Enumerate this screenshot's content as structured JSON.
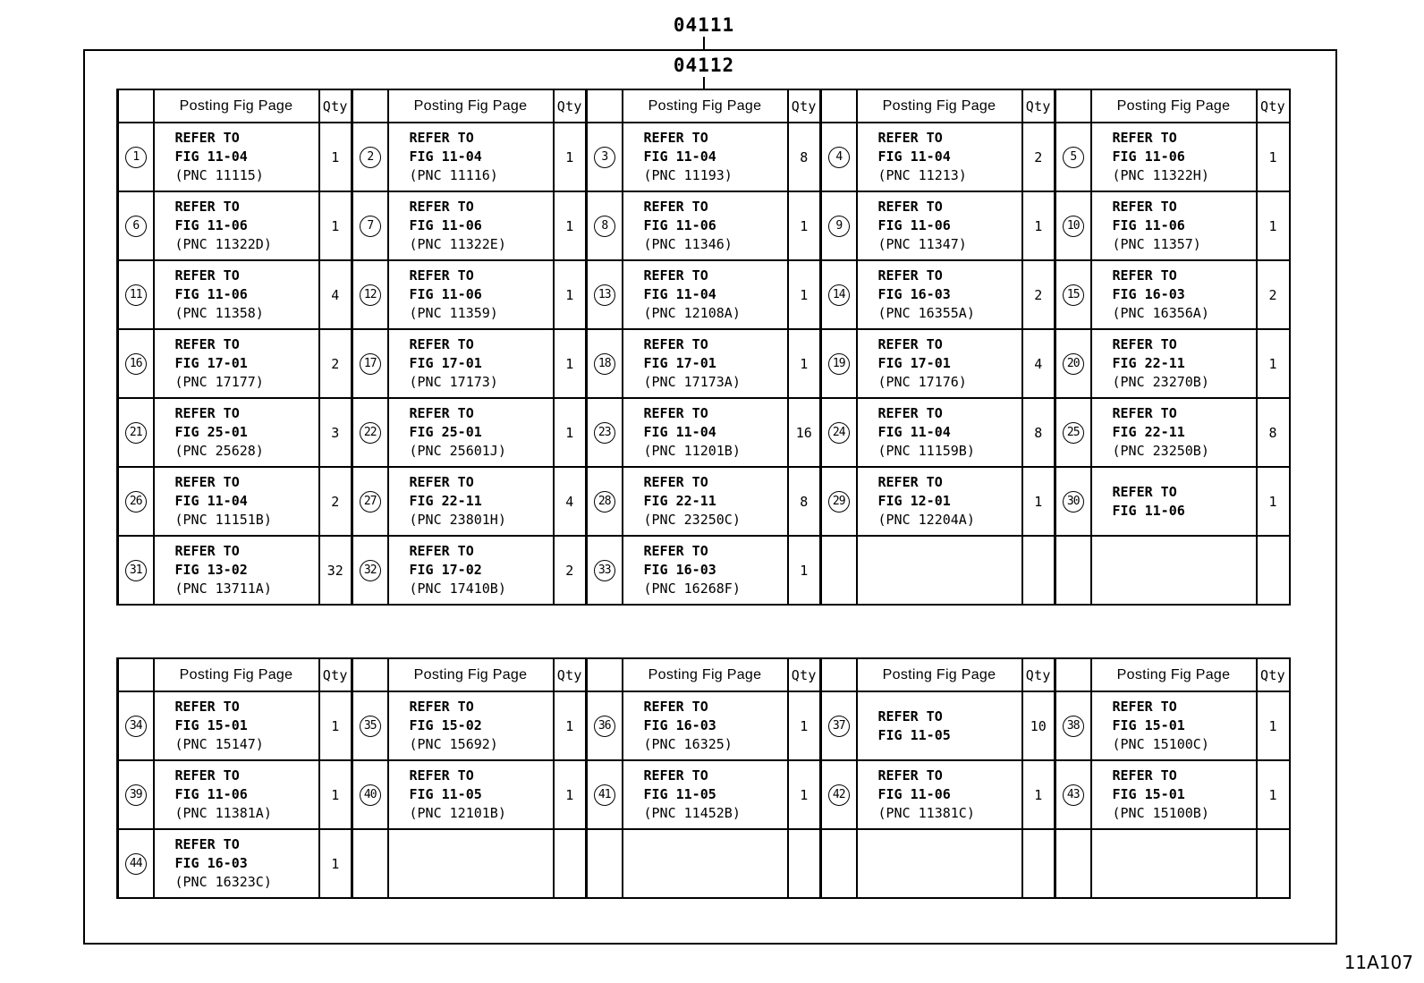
{
  "page": {
    "top_code": "04111",
    "inner_code": "04112",
    "corner_code": "11A107"
  },
  "tables": [
    {
      "header": {
        "posting": "Posting Fig Page",
        "qty": "Qty"
      },
      "rows": [
        [
          {
            "num": "1",
            "lines": [
              "REFER TO",
              "FIG 11-04",
              "(PNC 11115)"
            ],
            "qty": "1"
          },
          {
            "num": "2",
            "lines": [
              "REFER TO",
              "FIG 11-04",
              "(PNC 11116)"
            ],
            "qty": "1"
          },
          {
            "num": "3",
            "lines": [
              "REFER TO",
              "FIG 11-04",
              "(PNC 11193)"
            ],
            "qty": "8"
          },
          {
            "num": "4",
            "lines": [
              "REFER TO",
              "FIG 11-04",
              "(PNC 11213)"
            ],
            "qty": "2"
          },
          {
            "num": "5",
            "lines": [
              "REFER TO",
              "FIG 11-06",
              "(PNC 11322H)"
            ],
            "qty": "1"
          }
        ],
        [
          {
            "num": "6",
            "lines": [
              "REFER TO",
              "FIG 11-06",
              "(PNC 11322D)"
            ],
            "qty": "1"
          },
          {
            "num": "7",
            "lines": [
              "REFER TO",
              "FIG 11-06",
              "(PNC 11322E)"
            ],
            "qty": "1"
          },
          {
            "num": "8",
            "lines": [
              "REFER TO",
              "FIG 11-06",
              "(PNC 11346)"
            ],
            "qty": "1"
          },
          {
            "num": "9",
            "lines": [
              "REFER TO",
              "FIG 11-06",
              "(PNC 11347)"
            ],
            "qty": "1"
          },
          {
            "num": "10",
            "lines": [
              "REFER TO",
              "FIG 11-06",
              "(PNC 11357)"
            ],
            "qty": "1"
          }
        ],
        [
          {
            "num": "11",
            "lines": [
              "REFER TO",
              "FIG 11-06",
              "(PNC 11358)"
            ],
            "qty": "4"
          },
          {
            "num": "12",
            "lines": [
              "REFER TO",
              "FIG 11-06",
              "(PNC 11359)"
            ],
            "qty": "1"
          },
          {
            "num": "13",
            "lines": [
              "REFER TO",
              "FIG 11-04",
              "(PNC 12108A)"
            ],
            "qty": "1"
          },
          {
            "num": "14",
            "lines": [
              "REFER TO",
              "FIG 16-03",
              "(PNC 16355A)"
            ],
            "qty": "2"
          },
          {
            "num": "15",
            "lines": [
              "REFER TO",
              "FIG 16-03",
              "(PNC 16356A)"
            ],
            "qty": "2"
          }
        ],
        [
          {
            "num": "16",
            "lines": [
              "REFER TO",
              "FIG 17-01",
              "(PNC 17177)"
            ],
            "qty": "2"
          },
          {
            "num": "17",
            "lines": [
              "REFER TO",
              "FIG 17-01",
              "(PNC 17173)"
            ],
            "qty": "1"
          },
          {
            "num": "18",
            "lines": [
              "REFER TO",
              "FIG 17-01",
              "(PNC 17173A)"
            ],
            "qty": "1"
          },
          {
            "num": "19",
            "lines": [
              "REFER TO",
              "FIG 17-01",
              "(PNC 17176)"
            ],
            "qty": "4"
          },
          {
            "num": "20",
            "lines": [
              "REFER TO",
              "FIG 22-11",
              "(PNC 23270B)"
            ],
            "qty": "1"
          }
        ],
        [
          {
            "num": "21",
            "lines": [
              "REFER TO",
              "FIG 25-01",
              "(PNC 25628)"
            ],
            "qty": "3"
          },
          {
            "num": "22",
            "lines": [
              "REFER TO",
              "FIG 25-01",
              "(PNC 25601J)"
            ],
            "qty": "1"
          },
          {
            "num": "23",
            "lines": [
              "REFER TO",
              "FIG 11-04",
              "(PNC 11201B)"
            ],
            "qty": "16"
          },
          {
            "num": "24",
            "lines": [
              "REFER TO",
              "FIG 11-04",
              "(PNC 11159B)"
            ],
            "qty": "8"
          },
          {
            "num": "25",
            "lines": [
              "REFER TO",
              "FIG 22-11",
              "(PNC 23250B)"
            ],
            "qty": "8"
          }
        ],
        [
          {
            "num": "26",
            "lines": [
              "REFER TO",
              "FIG 11-04",
              "(PNC 11151B)"
            ],
            "qty": "2"
          },
          {
            "num": "27",
            "lines": [
              "REFER TO",
              "FIG 22-11",
              "(PNC 23801H)"
            ],
            "qty": "4"
          },
          {
            "num": "28",
            "lines": [
              "REFER TO",
              "FIG 22-11",
              "(PNC 23250C)"
            ],
            "qty": "8"
          },
          {
            "num": "29",
            "lines": [
              "REFER TO",
              "FIG 12-01",
              "(PNC 12204A)"
            ],
            "qty": "1"
          },
          {
            "num": "30",
            "lines": [
              "REFER TO",
              "FIG 11-06"
            ],
            "qty": "1"
          }
        ],
        [
          {
            "num": "31",
            "lines": [
              "REFER TO",
              "FIG 13-02",
              "(PNC 13711A)"
            ],
            "qty": "32"
          },
          {
            "num": "32",
            "lines": [
              "REFER TO",
              "FIG 17-02",
              "(PNC 17410B)"
            ],
            "qty": "2"
          },
          {
            "num": "33",
            "lines": [
              "REFER TO",
              "FIG 16-03",
              "(PNC 16268F)"
            ],
            "qty": "1"
          },
          null,
          null
        ]
      ]
    },
    {
      "header": {
        "posting": "Posting Fig Page",
        "qty": "Qty"
      },
      "rows": [
        [
          {
            "num": "34",
            "lines": [
              "REFER TO",
              "FIG 15-01",
              "(PNC 15147)"
            ],
            "qty": "1"
          },
          {
            "num": "35",
            "lines": [
              "REFER TO",
              "FIG 15-02",
              "(PNC 15692)"
            ],
            "qty": "1"
          },
          {
            "num": "36",
            "lines": [
              "REFER TO",
              "FIG 16-03",
              "(PNC 16325)"
            ],
            "qty": "1"
          },
          {
            "num": "37",
            "lines": [
              "REFER TO",
              "FIG 11-05"
            ],
            "qty": "10"
          },
          {
            "num": "38",
            "lines": [
              "REFER TO",
              "FIG 15-01",
              "(PNC 15100C)"
            ],
            "qty": "1"
          }
        ],
        [
          {
            "num": "39",
            "lines": [
              "REFER TO",
              "FIG 11-06",
              "(PNC 11381A)"
            ],
            "qty": "1"
          },
          {
            "num": "40",
            "lines": [
              "REFER TO",
              "FIG 11-05",
              "(PNC 12101B)"
            ],
            "qty": "1"
          },
          {
            "num": "41",
            "lines": [
              "REFER TO",
              "FIG 11-05",
              "(PNC 11452B)"
            ],
            "qty": "1"
          },
          {
            "num": "42",
            "lines": [
              "REFER TO",
              "FIG 11-06",
              "(PNC 11381C)"
            ],
            "qty": "1"
          },
          {
            "num": "43",
            "lines": [
              "REFER TO",
              "FIG 15-01",
              "(PNC 15100B)"
            ],
            "qty": "1"
          }
        ],
        [
          {
            "num": "44",
            "lines": [
              "REFER TO",
              "FIG 16-03",
              "(PNC 16323C)"
            ],
            "qty": "1"
          },
          null,
          null,
          null,
          null
        ]
      ]
    }
  ]
}
